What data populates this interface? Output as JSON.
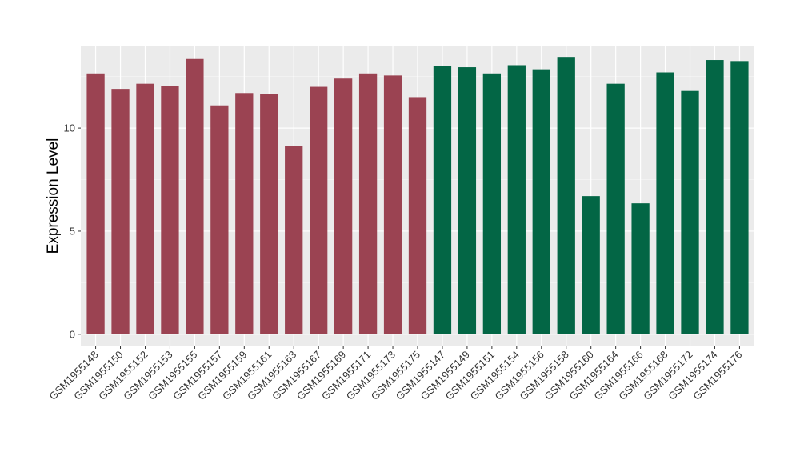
{
  "chart_data": {
    "type": "bar",
    "title": "",
    "xlabel": "",
    "ylabel": "Expression Level",
    "ylim": [
      -0.55,
      14.0
    ],
    "yticks": [
      0,
      5,
      10
    ],
    "grid": true,
    "legend": "none",
    "categories": [
      "GSM1955148",
      "GSM1955150",
      "GSM1955152",
      "GSM1955153",
      "GSM1955155",
      "GSM1955157",
      "GSM1955159",
      "GSM1955161",
      "GSM1955163",
      "GSM1955167",
      "GSM1955169",
      "GSM1955171",
      "GSM1955173",
      "GSM1955175",
      "GSM1955147",
      "GSM1955149",
      "GSM1955151",
      "GSM1955154",
      "GSM1955156",
      "GSM1955158",
      "GSM1955160",
      "GSM1955164",
      "GSM1955166",
      "GSM1955168",
      "GSM1955172",
      "GSM1955174",
      "GSM1955176"
    ],
    "values": [
      12.65,
      11.9,
      12.15,
      12.05,
      13.35,
      11.1,
      11.7,
      11.65,
      9.15,
      12.0,
      12.4,
      12.65,
      12.55,
      11.5,
      13.0,
      12.95,
      12.65,
      13.05,
      12.85,
      13.45,
      6.7,
      12.15,
      6.35,
      12.7,
      11.8,
      13.3,
      13.25
    ],
    "groups": [
      0,
      0,
      0,
      0,
      0,
      0,
      0,
      0,
      0,
      0,
      0,
      0,
      0,
      0,
      1,
      1,
      1,
      1,
      1,
      1,
      1,
      1,
      1,
      1,
      1,
      1,
      1
    ]
  },
  "colors": {
    "panel_background": "#ebebeb",
    "grid_major": "#ffffff",
    "grid_minor": "#f5f5f5",
    "group_colors": [
      "#9b4352",
      "#036645"
    ]
  }
}
